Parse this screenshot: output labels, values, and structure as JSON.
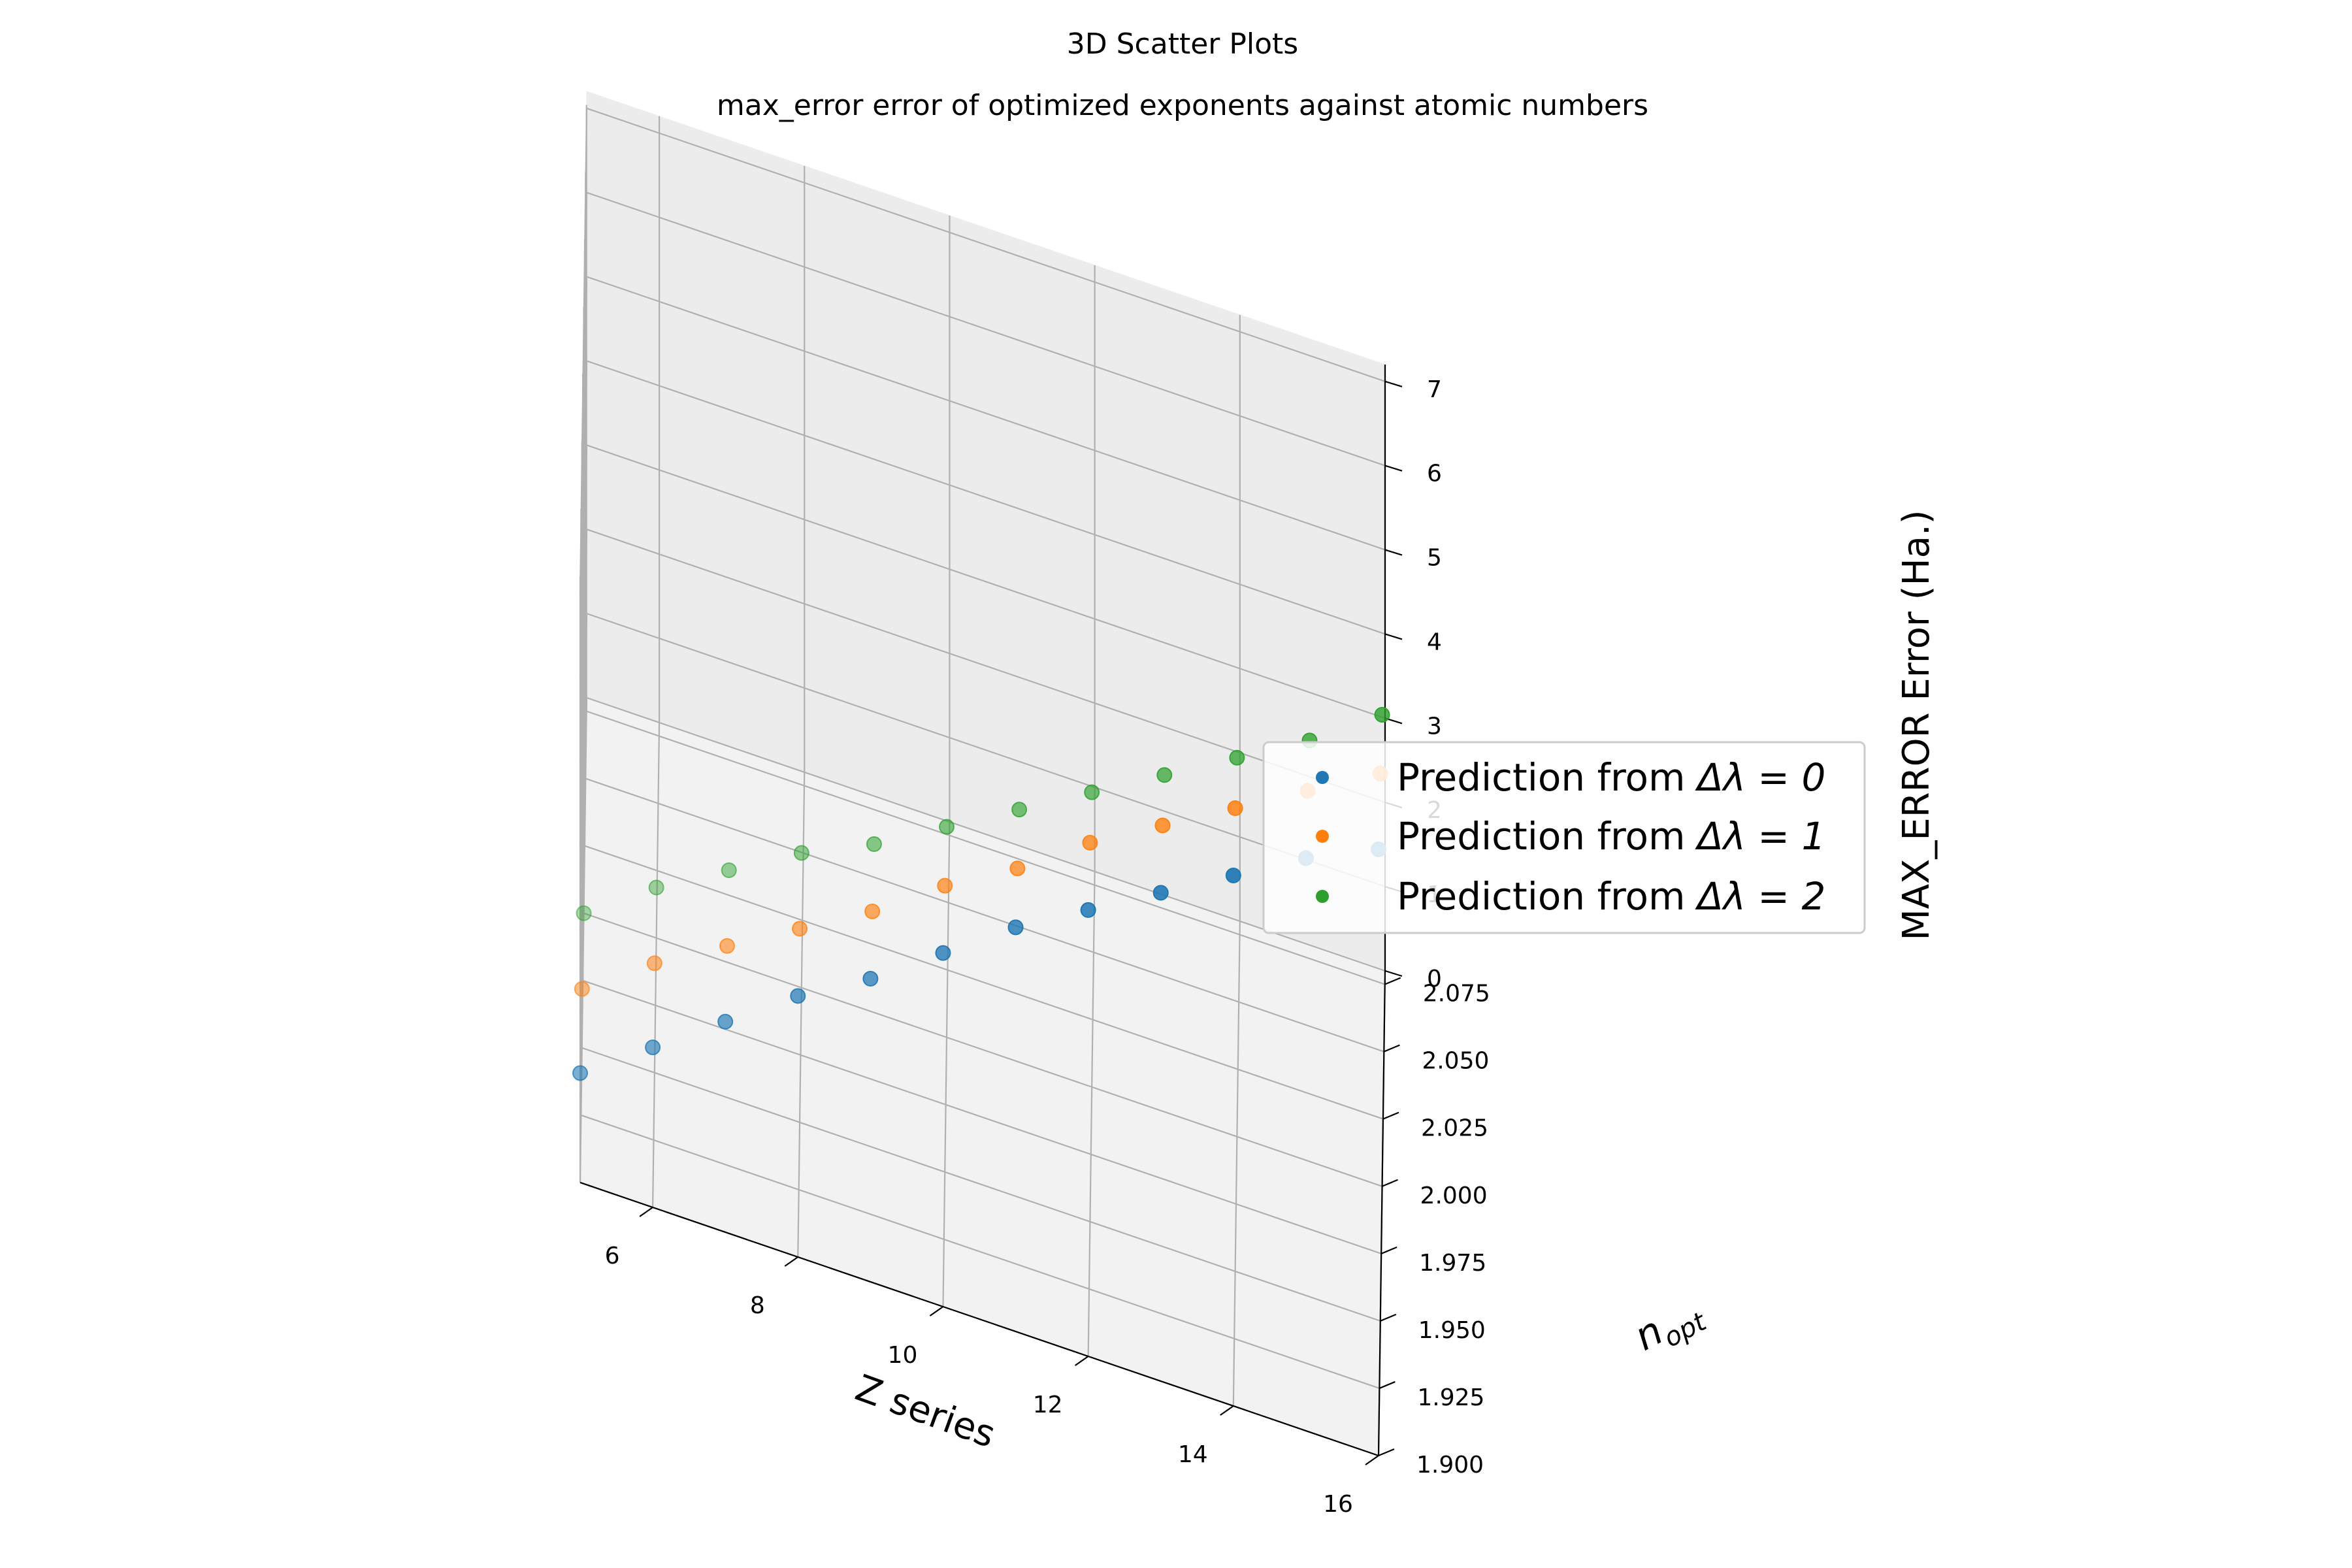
{
  "figure": {
    "suptitle": "3D Scatter Plots",
    "title": "max_error error of optimized exponents against atomic numbers"
  },
  "chart_data": {
    "type": "scatter",
    "projection": "3d",
    "title": "max_error error of optimized exponents against atomic numbers",
    "xlabel": "Z series",
    "ylabel_main": "n",
    "ylabel_sub": "opt",
    "zlabel": "MAX_ERROR Error (Ha.)",
    "xlim": [
      5,
      16
    ],
    "ylim": [
      1.9,
      2.08
    ],
    "zlim": [
      0,
      7.2
    ],
    "xticks": [
      6,
      8,
      10,
      12,
      14,
      16
    ],
    "xtick_labels": [
      "6",
      "8",
      "10",
      "12",
      "14",
      "16"
    ],
    "yticks": [
      1.9,
      1.925,
      1.95,
      1.975,
      2.0,
      2.025,
      2.05,
      2.075
    ],
    "ytick_labels": [
      "1.900",
      "1.925",
      "1.950",
      "1.975",
      "2.000",
      "2.025",
      "2.050",
      "2.075"
    ],
    "zticks": [
      0,
      1,
      2,
      3,
      4,
      5,
      6,
      7
    ],
    "ztick_labels": [
      "0",
      "1",
      "2",
      "3",
      "4",
      "5",
      "6",
      "7"
    ],
    "grid": true,
    "legend_position": "center-right",
    "series": [
      {
        "label_prefix": "Prediction from ",
        "label_math": "Δλ = 0",
        "color": "#1f77b4",
        "x": [
          5,
          6,
          7,
          8,
          9,
          10,
          11,
          12,
          13,
          14,
          15,
          16
        ],
        "y": [
          1.9,
          1.9,
          1.9,
          1.9,
          1.9,
          1.9,
          1.9,
          1.9,
          1.9,
          1.9,
          1.9,
          1.9
        ],
        "z": [
          1.3,
          1.9,
          2.5,
          3.1,
          3.6,
          4.2,
          4.8,
          5.3,
          5.8,
          6.3,
          6.8,
          7.2
        ]
      },
      {
        "label_prefix": "Prediction from ",
        "label_math": "Δλ = 1",
        "color": "#ff7f0e",
        "x": [
          5,
          6,
          7,
          8,
          9,
          10,
          11,
          12,
          13,
          14,
          15,
          16
        ],
        "y": [
          1.95,
          1.95,
          1.95,
          1.95,
          1.95,
          1.95,
          1.95,
          1.95,
          1.95,
          1.95,
          1.95,
          1.95
        ],
        "z": [
          0.7,
          1.3,
          1.8,
          2.3,
          2.8,
          3.4,
          3.9,
          4.5,
          5.0,
          5.5,
          6.0,
          6.5
        ]
      },
      {
        "label_prefix": "Prediction from ",
        "label_math": "Δλ = 2",
        "color": "#2ca02c",
        "x": [
          5,
          6,
          7,
          8,
          9,
          10,
          11,
          12,
          13,
          14,
          15,
          16
        ],
        "y": [
          2.0,
          2.0,
          2.0,
          2.0,
          2.0,
          2.0,
          2.0,
          2.0,
          2.0,
          2.0,
          2.0,
          2.0
        ],
        "z": [
          0.0,
          0.6,
          1.1,
          1.6,
          2.0,
          2.5,
          3.0,
          3.5,
          4.0,
          4.5,
          5.0,
          5.6
        ]
      }
    ]
  }
}
